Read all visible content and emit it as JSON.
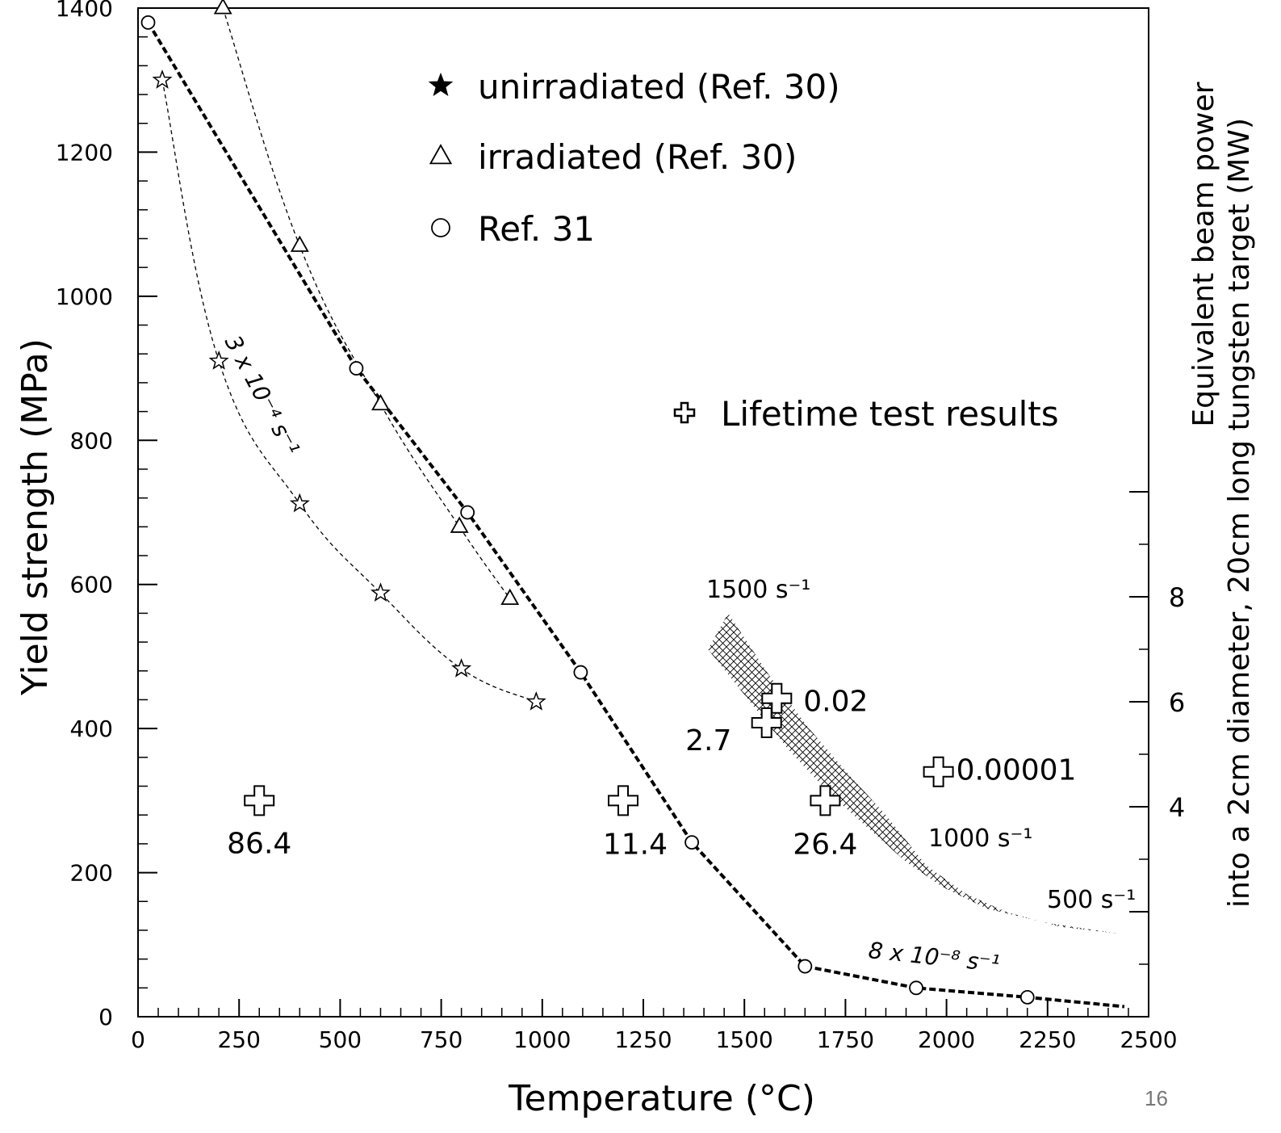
{
  "chart_data": {
    "type": "scatter",
    "xlabel": "Temperature (°C)",
    "ylabel": "Yield strength (MPa)",
    "y2label_line1": "Equivalent beam power",
    "y2label_line2": "into a 2cm diameter, 20cm long tungsten target (MW)",
    "xlim": [
      0,
      2500
    ],
    "ylim": [
      0,
      1400
    ],
    "y2lim": [
      0,
      10
    ],
    "x_ticks": [
      0,
      250,
      500,
      750,
      1000,
      1250,
      1500,
      1750,
      2000,
      2250,
      2500
    ],
    "y_ticks": [
      0,
      200,
      400,
      600,
      800,
      1000,
      1200,
      1400
    ],
    "y2_ticks": [
      4,
      6,
      8
    ],
    "series": [
      {
        "name": "unirradiated (Ref. 30)",
        "marker": "star",
        "line": "thin-dashed",
        "x": [
          60,
          200,
          400,
          600,
          800,
          985
        ],
        "y": [
          1300,
          910,
          712,
          588,
          483,
          437
        ]
      },
      {
        "name": "irradiated (Ref. 30)",
        "marker": "triangle",
        "line": "thin-dashed",
        "x": [
          210,
          400,
          600,
          795,
          920
        ],
        "y": [
          1400,
          1070,
          850,
          680,
          580
        ]
      },
      {
        "name": "Ref. 31",
        "marker": "circle",
        "line": "thick-dashed",
        "x": [
          25,
          540,
          815,
          1095,
          1370,
          1650,
          1925,
          2200
        ],
        "y": [
          1380,
          900,
          700,
          478,
          242,
          70,
          40,
          27
        ]
      },
      {
        "name": "Lifetime test results",
        "marker": "cross",
        "x": [
          300,
          1200,
          1700,
          1555,
          1580,
          1980
        ],
        "y": [
          300,
          300,
          300,
          408,
          442,
          340
        ],
        "labels": [
          "86.4",
          "11.4",
          "26.4",
          "2.7",
          "0.02",
          "0.00001"
        ]
      }
    ],
    "legend_labels": [
      "unirradiated (Ref. 30)",
      "irradiated (Ref. 30)",
      "Ref. 31",
      "Lifetime test results"
    ],
    "annotations": [
      "3 x 10⁻⁴ s⁻¹",
      "1500 s⁻¹",
      "1000 s⁻¹",
      "500 s⁻¹",
      "8 x 10⁻⁸ s⁻¹"
    ],
    "band": {
      "upper": [
        [
          1460,
          560
        ],
        [
          1560,
          475
        ],
        [
          1660,
          400
        ],
        [
          1760,
          335
        ],
        [
          1850,
          280
        ],
        [
          1950,
          210
        ],
        [
          2050,
          170
        ],
        [
          2150,
          145
        ],
        [
          2280,
          125
        ],
        [
          2430,
          115
        ]
      ],
      "lower": [
        [
          1410,
          510
        ],
        [
          1510,
          440
        ],
        [
          1610,
          370
        ],
        [
          1710,
          310
        ],
        [
          1800,
          265
        ],
        [
          1900,
          215
        ],
        [
          1990,
          180
        ],
        [
          2100,
          150
        ],
        [
          2250,
          130
        ],
        [
          2430,
          115
        ]
      ]
    },
    "legend": "top-center",
    "grid": false
  },
  "slide_number": "16"
}
